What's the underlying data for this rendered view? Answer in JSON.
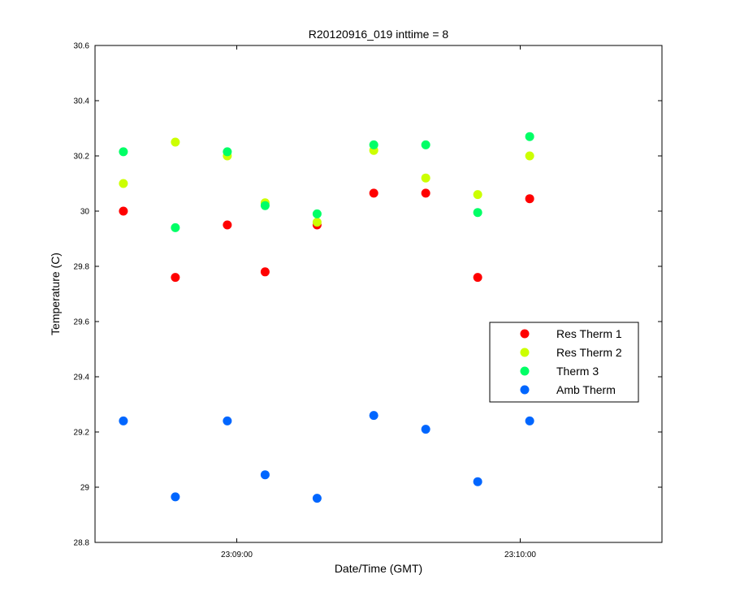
{
  "chart_data": {
    "type": "scatter",
    "title": "R20120916_019 inttime = 8",
    "xlabel": "Date/Time (GMT)",
    "ylabel": "Temperature (C)",
    "x_time_range": [
      "23:08:30",
      "23:10:30"
    ],
    "ylim": [
      28.8,
      30.6
    ],
    "x_ticks": [
      "23:09:00",
      "23:10:00"
    ],
    "y_ticks": [
      28.8,
      29,
      29.2,
      29.4,
      29.6,
      29.8,
      30,
      30.2,
      30.4,
      30.6
    ],
    "y_tick_labels": [
      "28.8",
      "29",
      "29.2",
      "29.4",
      "29.6",
      "29.8",
      "30",
      "30.2",
      "30.4",
      "30.6"
    ],
    "grid": false,
    "legend_position": "right",
    "x": [
      "23:08:36",
      "23:08:47",
      "23:08:58",
      "23:09:06",
      "23:09:17",
      "23:09:29",
      "23:09:40",
      "23:09:51",
      "23:10:02"
    ],
    "series": [
      {
        "name": "Res Therm 1",
        "color": "#ff0000",
        "values": [
          30.0,
          29.76,
          29.95,
          29.78,
          29.95,
          30.065,
          30.065,
          29.76,
          30.045
        ]
      },
      {
        "name": "Res Therm 2",
        "color": "#ccff00",
        "values": [
          30.1,
          null,
          30.2,
          30.03,
          29.96,
          30.22,
          30.12,
          30.06,
          30.2
        ]
      },
      {
        "name": "Therm 3",
        "color": "#00ff66",
        "values": [
          30.215,
          29.94,
          30.215,
          30.02,
          29.99,
          30.24,
          30.24,
          29.995,
          30.27
        ]
      },
      {
        "name": "Amb Therm",
        "color": "#0066ff",
        "values": [
          29.24,
          28.965,
          29.24,
          29.045,
          28.96,
          29.26,
          29.21,
          29.02,
          29.24
        ]
      }
    ],
    "extra_points": [
      {
        "series": "Res Therm 2",
        "x": "23:08:47",
        "value": 30.25
      }
    ]
  }
}
